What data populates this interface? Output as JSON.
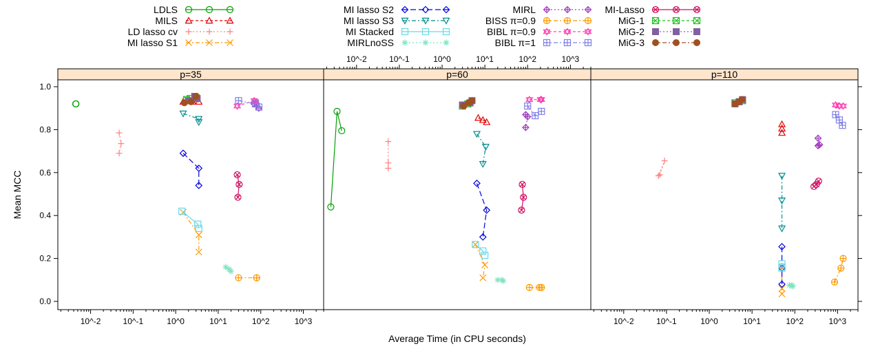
{
  "chart_data": {
    "type": "scatter",
    "xlabel": "Average Time (in CPU seconds)",
    "ylabel": "Mean MCC",
    "x_scale": "log10",
    "xlim": [
      0.0017,
      3000
    ],
    "ylim": [
      -0.03,
      1.03
    ],
    "x_ticks": [
      0.01,
      0.1,
      1,
      10,
      100,
      1000
    ],
    "x_tick_labels": [
      "10^-2",
      "10^-1",
      "10^0",
      "10^1",
      "10^2",
      "10^3"
    ],
    "y_ticks": [
      0.0,
      0.2,
      0.4,
      0.6,
      0.8,
      1.0
    ],
    "y_tick_labels": [
      "0.0",
      "0.2",
      "0.4",
      "0.6",
      "0.8",
      "1.0"
    ],
    "strip_color": "#FFE5CC",
    "legend_position": "top",
    "panels": [
      {
        "label": "p=35",
        "series": [
          {
            "name": "LDLS",
            "x": [
              0.0045,
              0.0045,
              0.0045
            ],
            "y": [
              0.92,
              0.92,
              0.92
            ]
          },
          {
            "name": "MILS",
            "x": [
              1.5,
              2.5,
              3.5
            ],
            "y": [
              0.93,
              0.93,
              0.93
            ]
          },
          {
            "name": "LD lasso cv",
            "x": [
              0.047,
              0.052,
              0.047
            ],
            "y": [
              0.785,
              0.735,
              0.69
            ]
          },
          {
            "name": "MI lasso S1",
            "x": [
              1.5,
              3.5,
              3.5
            ],
            "y": [
              0.415,
              0.31,
              0.23
            ]
          },
          {
            "name": "MI lasso S2",
            "x": [
              1.5,
              3.5,
              3.5
            ],
            "y": [
              0.69,
              0.62,
              0.54
            ]
          },
          {
            "name": "MI lasso S3",
            "x": [
              1.5,
              3.5,
              3.5
            ],
            "y": [
              0.875,
              0.85,
              0.835
            ]
          },
          {
            "name": "MI Stacked",
            "x": [
              1.4,
              3.3,
              3.5
            ],
            "y": [
              0.42,
              0.36,
              0.34
            ]
          },
          {
            "name": "MIRLnoSS",
            "x": [
              15,
              18,
              20
            ],
            "y": [
              0.16,
              0.15,
              0.14
            ]
          },
          {
            "name": "MIRL",
            "x": [
              70,
              80,
              90
            ],
            "y": [
              0.92,
              0.92,
              0.9
            ]
          },
          {
            "name": "BISS π=0.9",
            "x": [
              30,
              80,
              80
            ],
            "y": [
              0.11,
              0.11,
              0.11
            ]
          },
          {
            "name": "BIBL π=0.9",
            "x": [
              28,
              70,
              75
            ],
            "y": [
              0.91,
              0.935,
              0.93
            ]
          },
          {
            "name": "BIBL π=1",
            "x": [
              30,
              75,
              90
            ],
            "y": [
              0.935,
              0.92,
              0.905
            ]
          },
          {
            "name": "MI-Lasso",
            "x": [
              28,
              31,
              29
            ],
            "y": [
              0.59,
              0.545,
              0.485
            ]
          },
          {
            "name": "MiG-1",
            "x": [
              1.8,
              2.2,
              3.0
            ],
            "y": [
              0.94,
              0.945,
              0.95
            ]
          },
          {
            "name": "MiG-2",
            "x": [
              2.0,
              2.8,
              3.2
            ],
            "y": [
              0.935,
              0.955,
              0.945
            ]
          },
          {
            "name": "MiG-3",
            "x": [
              1.6,
              2.3,
              3.0
            ],
            "y": [
              0.925,
              0.93,
              0.955
            ]
          }
        ]
      },
      {
        "label": "p=60",
        "series": [
          {
            "name": "LDLS",
            "x": [
              0.0025,
              0.0035,
              0.0045
            ],
            "y": [
              0.44,
              0.885,
              0.795
            ]
          },
          {
            "name": "MILS",
            "x": [
              7,
              9,
              11
            ],
            "y": [
              0.855,
              0.845,
              0.835
            ]
          },
          {
            "name": "LD lasso cv",
            "x": [
              0.055,
              0.055,
              0.055
            ],
            "y": [
              0.745,
              0.645,
              0.62
            ]
          },
          {
            "name": "MI lasso S1",
            "x": [
              6,
              10,
              9
            ],
            "y": [
              0.265,
              0.17,
              0.11
            ]
          },
          {
            "name": "MI lasso S2",
            "x": [
              6.5,
              11,
              9
            ],
            "y": [
              0.55,
              0.425,
              0.3
            ]
          },
          {
            "name": "MI lasso S3",
            "x": [
              6.5,
              10.5,
              9
            ],
            "y": [
              0.78,
              0.72,
              0.64
            ]
          },
          {
            "name": "MI Stacked",
            "x": [
              6,
              9,
              10
            ],
            "y": [
              0.265,
              0.235,
              0.215
            ]
          },
          {
            "name": "MIRLnoSS",
            "x": [
              20,
              25,
              27
            ],
            "y": [
              0.1,
              0.1,
              0.095
            ]
          },
          {
            "name": "MIRL",
            "x": [
              90,
              100,
              90
            ],
            "y": [
              0.87,
              0.86,
              0.81
            ]
          },
          {
            "name": "BISS π=0.9",
            "x": [
              110,
              190,
              210
            ],
            "y": [
              0.065,
              0.065,
              0.065
            ]
          },
          {
            "name": "BIBL π=0.9",
            "x": [
              110,
              200,
              210
            ],
            "y": [
              0.94,
              0.94,
              0.94
            ]
          },
          {
            "name": "BIBL π=1",
            "x": [
              100,
              150,
              210
            ],
            "y": [
              0.91,
              0.865,
              0.885
            ]
          },
          {
            "name": "MI-Lasso",
            "x": [
              75,
              80,
              72
            ],
            "y": [
              0.545,
              0.485,
              0.425
            ]
          },
          {
            "name": "MiG-1",
            "x": [
              3.0,
              4.0,
              4.5
            ],
            "y": [
              0.91,
              0.92,
              0.925
            ]
          },
          {
            "name": "MiG-2",
            "x": [
              3.0,
              4.5,
              5.0
            ],
            "y": [
              0.915,
              0.925,
              0.935
            ]
          },
          {
            "name": "MiG-3",
            "x": [
              3.2,
              4.2,
              5.0
            ],
            "y": [
              0.91,
              0.925,
              0.935
            ]
          }
        ]
      },
      {
        "label": "p=110",
        "series": [
          {
            "name": "MILS",
            "x": [
              50,
              50,
              50
            ],
            "y": [
              0.825,
              0.805,
              0.785
            ]
          },
          {
            "name": "LD lasso cv",
            "x": [
              0.07,
              0.09,
              0.065
            ],
            "y": [
              0.59,
              0.655,
              0.585
            ]
          },
          {
            "name": "MI lasso S1",
            "x": [
              50,
              50,
              50
            ],
            "y": [
              0.16,
              0.06,
              0.035
            ]
          },
          {
            "name": "MI lasso S2",
            "x": [
              50,
              50,
              50
            ],
            "y": [
              0.255,
              0.155,
              0.08
            ]
          },
          {
            "name": "MI lasso S3",
            "x": [
              50,
              50,
              50
            ],
            "y": [
              0.585,
              0.47,
              0.34
            ]
          },
          {
            "name": "MI Stacked",
            "x": [
              50,
              50,
              50
            ],
            "y": [
              0.175,
              0.16,
              0.155
            ]
          },
          {
            "name": "MIRLnoSS",
            "x": [
              75,
              85,
              90
            ],
            "y": [
              0.075,
              0.075,
              0.07
            ]
          },
          {
            "name": "MIRL",
            "x": [
              350,
              380,
              350
            ],
            "y": [
              0.76,
              0.73,
              0.725
            ]
          },
          {
            "name": "BISS π=0.9",
            "x": [
              850,
              1200,
              1350
            ],
            "y": [
              0.09,
              0.155,
              0.2
            ]
          },
          {
            "name": "BIBL π=0.9",
            "x": [
              900,
              1100,
              1350
            ],
            "y": [
              0.915,
              0.91,
              0.91
            ]
          },
          {
            "name": "BIBL π=1",
            "x": [
              900,
              1100,
              1300
            ],
            "y": [
              0.87,
              0.845,
              0.82
            ]
          },
          {
            "name": "MI-Lasso",
            "x": [
              280,
              320,
              360
            ],
            "y": [
              0.535,
              0.545,
              0.56
            ]
          },
          {
            "name": "MiG-1",
            "x": [
              4.0,
              5.0,
              6.0
            ],
            "y": [
              0.925,
              0.93,
              0.935
            ]
          },
          {
            "name": "MiG-2",
            "x": [
              4.0,
              5.0,
              6.0
            ],
            "y": [
              0.92,
              0.93,
              0.94
            ]
          },
          {
            "name": "MiG-3",
            "x": [
              4.0,
              5.0,
              5.8
            ],
            "y": [
              0.92,
              0.93,
              0.94
            ]
          }
        ]
      }
    ],
    "legend": [
      {
        "name": "LDLS",
        "color": "#00A000",
        "symbol": "circle",
        "dash": "none"
      },
      {
        "name": "MILS",
        "color": "#E00000",
        "symbol": "triangle",
        "dash": "4,3"
      },
      {
        "name": "LD lasso cv",
        "color": "#FF8080",
        "symbol": "plus",
        "dash": "2,3"
      },
      {
        "name": "MI lasso S1",
        "color": "#FF9900",
        "symbol": "x",
        "dash": "6,3,2,3"
      },
      {
        "name": "MI lasso S2",
        "color": "#0000E0",
        "symbol": "diamond",
        "dash": "8,4"
      },
      {
        "name": "MI lasso S3",
        "color": "#008C8C",
        "symbol": "tri-down",
        "dash": "6,3,2,3"
      },
      {
        "name": "MI Stacked",
        "color": "#66D9E8",
        "symbol": "square",
        "dash": "none"
      },
      {
        "name": "MIRLnoSS",
        "color": "#7FE5C0",
        "symbol": "asterisk",
        "dash": "2,3"
      },
      {
        "name": "MIRL",
        "color": "#A040C0",
        "symbol": "diamond-plus",
        "dash": "2,3"
      },
      {
        "name": "BISS π=0.9",
        "color": "#FF9900",
        "symbol": "circle-plus",
        "dash": "6,3,2,3"
      },
      {
        "name": "BIBL π=0.9",
        "color": "#FF40B0",
        "symbol": "star6",
        "dash": "4,3"
      },
      {
        "name": "BIBL π=1",
        "color": "#8080E8",
        "symbol": "square-plus",
        "dash": "6,3,2,3"
      },
      {
        "name": "MI-Lasso",
        "color": "#D01060",
        "symbol": "circle-x",
        "dash": "none"
      },
      {
        "name": "MiG-1",
        "color": "#20C020",
        "symbol": "square-x",
        "dash": "4,3"
      },
      {
        "name": "MiG-2",
        "color": "#8060A0",
        "symbol": "filled-square",
        "dash": "2,3"
      },
      {
        "name": "MiG-3",
        "color": "#A05020",
        "symbol": "filled-circle",
        "dash": "6,3,2,3"
      }
    ]
  }
}
